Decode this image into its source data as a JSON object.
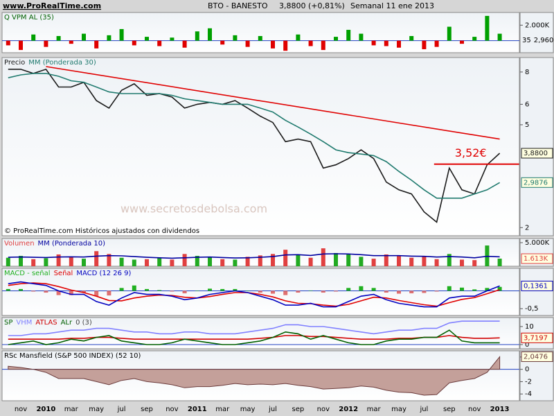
{
  "header": {
    "site": "www.ProRealTime.com",
    "symbol": "BTO - BANESTO",
    "quote": "3,8800 (+0,81%)",
    "period": "Semanal  11 ene 2013"
  },
  "x_axis": {
    "categories": [
      null,
      "nov",
      null,
      "2010",
      null,
      "mar",
      null,
      "may",
      null,
      "jul",
      null,
      "sep",
      null,
      "nov",
      null,
      "2011",
      null,
      "mar",
      null,
      "may",
      null,
      "jul",
      null,
      "sep",
      null,
      "nov",
      null,
      "2012",
      null,
      "mar",
      null,
      "may",
      null,
      "jul",
      null,
      "sep",
      null,
      "nov",
      null,
      "2013"
    ]
  },
  "chart_data": [
    {
      "type": "bar",
      "title": "Q VPM AL (35)",
      "title_color": "#006000",
      "ylim": [
        -1550,
        3640
      ],
      "yticks": [
        {
          "value": 2000,
          "label": "2.000K"
        }
      ],
      "badges": [
        "35",
        "2,960"
      ],
      "series": [
        {
          "type": "bar",
          "up_color": "#00a000",
          "down_color": "#e00000",
          "values": [
            -600,
            -1200,
            800,
            -800,
            600,
            -400,
            900,
            -1000,
            700,
            1500,
            -600,
            500,
            -700,
            400,
            -900,
            1200,
            1600,
            -500,
            700,
            -800,
            600,
            -1000,
            -1300,
            800,
            -700,
            -1200,
            500,
            1400,
            900,
            -600,
            -700,
            -900,
            600,
            -1100,
            -800,
            1800,
            -400,
            500,
            3200,
            900
          ]
        }
      ]
    },
    {
      "type": "line",
      "log_scale": true,
      "ylim": [
        1.86,
        9.1
      ],
      "yticks": [
        2,
        5,
        6,
        8
      ],
      "note": "© ProRealTime.com Históricos ajustados con dividendos",
      "watermark": "www.secretosdebolsa.com",
      "level": {
        "text": "3,52€",
        "value": 3.52,
        "x": [
          "sep",
          "2013"
        ],
        "color": "#e00000"
      },
      "series": [
        {
          "name": "Precio",
          "type": "line",
          "color": "#1a1a1a",
          "values": [
            8.2,
            8.2,
            7.9,
            8.2,
            7.0,
            7.0,
            7.3,
            6.2,
            5.8,
            6.8,
            7.2,
            6.5,
            6.6,
            6.4,
            5.8,
            6.0,
            6.1,
            6.0,
            6.2,
            5.8,
            5.4,
            5.1,
            4.3,
            4.4,
            4.3,
            3.4,
            3.5,
            3.7,
            4.0,
            3.7,
            3.0,
            2.8,
            2.7,
            2.3,
            2.1,
            3.4,
            2.8,
            2.7,
            3.5,
            3.88
          ],
          "value_labels": [
            null,
            null,
            null,
            null,
            null,
            null,
            null,
            null,
            null,
            null,
            null,
            null,
            null,
            null,
            null,
            null,
            null,
            null,
            null,
            null,
            null,
            null,
            null,
            null,
            null,
            null,
            null,
            null,
            null,
            null,
            null,
            null,
            null,
            null,
            null,
            null,
            null,
            null,
            null,
            "3,8800"
          ]
        },
        {
          "name": "MM (Ponderada 30)",
          "type": "line",
          "color": "#1f7a6e",
          "values": [
            7.6,
            7.8,
            7.9,
            7.9,
            7.7,
            7.4,
            7.3,
            7.0,
            6.7,
            6.6,
            6.6,
            6.6,
            6.6,
            6.5,
            6.3,
            6.2,
            6.1,
            6.0,
            6.0,
            6.0,
            5.8,
            5.6,
            5.2,
            4.9,
            4.6,
            4.3,
            4.0,
            3.9,
            3.85,
            3.8,
            3.6,
            3.3,
            3.05,
            2.8,
            2.6,
            2.6,
            2.6,
            2.7,
            2.8,
            2.9876
          ],
          "value_labels": [
            null,
            null,
            null,
            null,
            null,
            null,
            null,
            null,
            null,
            null,
            null,
            null,
            null,
            null,
            null,
            null,
            null,
            null,
            null,
            null,
            null,
            null,
            null,
            null,
            null,
            null,
            null,
            null,
            null,
            null,
            null,
            null,
            null,
            null,
            null,
            null,
            null,
            null,
            null,
            "2,9876"
          ]
        },
        {
          "type": "line",
          "color": "#e00000",
          "x": [
            "2010",
            "2013"
          ],
          "values": [
            8.4,
            4.4
          ]
        }
      ]
    },
    {
      "type": "bar",
      "ylim": [
        0,
        5880
      ],
      "yticks": [
        {
          "value": 5000,
          "label": "5.000K"
        }
      ],
      "series": [
        {
          "name": "Volumen",
          "type": "bar",
          "color": "#e04040",
          "colors": [
            "#22aa22",
            "#22aa22",
            "#e04040",
            "#22aa22",
            "#e04040",
            "#e04040",
            "#22aa22",
            "#e04040",
            "#e04040",
            "#22aa22",
            "#22aa22",
            "#e04040",
            "#22aa22",
            "#e04040",
            "#e04040",
            "#22aa22",
            "#22aa22",
            "#e04040",
            "#22aa22",
            "#e04040",
            "#e04040",
            "#e04040",
            "#e04040",
            "#22aa22",
            "#e04040",
            "#e04040",
            "#22aa22",
            "#22aa22",
            "#22aa22",
            "#e04040",
            "#e04040",
            "#e04040",
            "#e04040",
            "#e04040",
            "#e04040",
            "#22aa22",
            "#e04040",
            "#e04040",
            "#22aa22",
            "#22aa22"
          ],
          "values": [
            1800,
            2200,
            1500,
            1700,
            2500,
            2000,
            1600,
            3200,
            2600,
            1800,
            1400,
            1500,
            1700,
            1400,
            2600,
            2200,
            1900,
            1500,
            1400,
            2000,
            2300,
            2600,
            3500,
            2400,
            1800,
            3800,
            2800,
            2500,
            2000,
            1600,
            2500,
            2300,
            1800,
            2000,
            1500,
            2600,
            1400,
            1300,
            4400,
            1613
          ],
          "value_labels": [
            null,
            null,
            null,
            null,
            null,
            null,
            null,
            null,
            null,
            null,
            null,
            null,
            null,
            null,
            null,
            null,
            null,
            null,
            null,
            null,
            null,
            null,
            null,
            null,
            null,
            null,
            null,
            null,
            null,
            null,
            null,
            null,
            null,
            null,
            null,
            null,
            null,
            null,
            null,
            "1.613K"
          ]
        },
        {
          "name": "MM (Ponderada 10)",
          "type": "line",
          "color": "#0000a0",
          "values": [
            1900,
            1950,
            1900,
            1850,
            1950,
            2000,
            1950,
            2150,
            2250,
            2200,
            2050,
            1900,
            1800,
            1700,
            1800,
            1900,
            1950,
            1850,
            1750,
            1800,
            1900,
            2050,
            2400,
            2450,
            2300,
            2600,
            2650,
            2600,
            2450,
            2250,
            2250,
            2250,
            2150,
            2100,
            1950,
            2050,
            1950,
            1800,
            2100,
            2000
          ]
        }
      ]
    },
    {
      "type": "bar",
      "ylim": [
        -0.69,
        0.63
      ],
      "yticks": [
        {
          "value": -0.5,
          "label": "-0,5"
        }
      ],
      "series": [
        {
          "name": "MACD - señal",
          "type": "bar",
          "up_color": "#20b020",
          "down_color": "#e07070",
          "values": [
            0.05,
            0.05,
            -0.02,
            -0.05,
            -0.12,
            -0.12,
            -0.05,
            -0.15,
            -0.13,
            0.08,
            0.15,
            0.05,
            0.02,
            -0.02,
            -0.07,
            0,
            0.06,
            0.05,
            0.05,
            0,
            -0.05,
            -0.08,
            -0.12,
            -0.05,
            0.01,
            -0.05,
            -0.02,
            0.08,
            0.13,
            0.08,
            -0.05,
            -0.08,
            -0.07,
            -0.06,
            -0.02,
            0.13,
            0.09,
            0.04,
            0.08,
            0.11
          ]
        },
        {
          "name": "Señal",
          "type": "line",
          "color": "#e00000",
          "values": [
            0.15,
            0.2,
            0.22,
            0.2,
            0.12,
            0.02,
            -0.05,
            -0.15,
            -0.27,
            -0.28,
            -0.2,
            -0.15,
            -0.12,
            -0.13,
            -0.18,
            -0.2,
            -0.16,
            -0.1,
            -0.05,
            -0.05,
            -0.1,
            -0.17,
            -0.28,
            -0.35,
            -0.36,
            -0.4,
            -0.43,
            -0.38,
            -0.28,
            -0.18,
            -0.2,
            -0.27,
            -0.33,
            -0.39,
            -0.43,
            -0.33,
            -0.24,
            -0.19,
            -0.08,
            0.03
          ]
        },
        {
          "name": "MACD (12 26 9)",
          "type": "line",
          "color": "#0000c0",
          "values": [
            0.2,
            0.25,
            0.2,
            0.15,
            0,
            -0.1,
            -0.1,
            -0.3,
            -0.4,
            -0.2,
            -0.05,
            -0.1,
            -0.1,
            -0.15,
            -0.25,
            -0.2,
            -0.1,
            -0.05,
            0,
            -0.05,
            -0.15,
            -0.25,
            -0.4,
            -0.4,
            -0.35,
            -0.45,
            -0.45,
            -0.3,
            -0.15,
            -0.1,
            -0.25,
            -0.35,
            -0.4,
            -0.45,
            -0.45,
            -0.2,
            -0.15,
            -0.15,
            0,
            0.1361
          ],
          "value_labels": [
            null,
            null,
            null,
            null,
            null,
            null,
            null,
            null,
            null,
            null,
            null,
            null,
            null,
            null,
            null,
            null,
            null,
            null,
            null,
            null,
            null,
            null,
            null,
            null,
            null,
            null,
            null,
            null,
            null,
            null,
            null,
            null,
            null,
            null,
            null,
            null,
            null,
            null,
            null,
            "0,1361"
          ]
        }
      ]
    },
    {
      "type": "line",
      "title": "SP",
      "title_color": "#006000",
      "params": "0 (3)",
      "ylim": [
        -2.3,
        15
      ],
      "yticks": [
        0,
        10
      ],
      "series": [
        {
          "name": "VHM",
          "type": "line",
          "color": "#8080ff",
          "values": [
            5,
            5,
            6,
            6,
            7,
            8,
            8,
            9,
            9,
            8,
            7,
            7,
            6,
            6,
            7,
            7,
            6,
            6,
            6,
            7,
            8,
            9,
            11,
            11,
            10,
            10,
            9,
            8,
            7,
            6,
            7,
            8,
            8,
            9,
            9,
            12,
            13,
            13,
            13,
            13
          ]
        },
        {
          "name": "ATLAS",
          "type": "line",
          "color": "#d00000",
          "values": [
            3,
            3,
            3,
            3,
            3,
            3.5,
            3.5,
            4,
            4,
            3.5,
            3,
            3,
            3,
            3,
            3,
            3,
            3,
            3,
            3,
            3,
            3.5,
            4,
            5,
            5,
            4.5,
            4.5,
            4,
            3.5,
            3,
            3,
            3,
            3.5,
            3.5,
            4,
            4,
            5,
            4,
            3.5,
            3.5,
            3.7197
          ],
          "value_labels": [
            null,
            null,
            null,
            null,
            null,
            null,
            null,
            null,
            null,
            null,
            null,
            null,
            null,
            null,
            null,
            null,
            null,
            null,
            null,
            null,
            null,
            null,
            null,
            null,
            null,
            null,
            null,
            null,
            null,
            null,
            null,
            null,
            null,
            null,
            null,
            null,
            null,
            null,
            null,
            "3,7197"
          ]
        },
        {
          "name": "ALr",
          "type": "line",
          "color": "#006000",
          "values": [
            0,
            1,
            2,
            0,
            1,
            3,
            2,
            4,
            5,
            2,
            1,
            0,
            0,
            1,
            3,
            2,
            1,
            0,
            0,
            1,
            2,
            4,
            7,
            6,
            3,
            5,
            3,
            1,
            0,
            0,
            2,
            3,
            3,
            4,
            4,
            8,
            2,
            1,
            1,
            1
          ]
        }
      ]
    },
    {
      "type": "area",
      "title": "RSc Mansfield (S&P 500 INDEX) (52 10)",
      "title_color": "#000000",
      "ylim": [
        -5.1,
        3
      ],
      "yticks": [
        2,
        0,
        -2,
        -4
      ],
      "series": [
        {
          "type": "area",
          "color": "#6b3b3b",
          "fill": "#c4a09a",
          "values": [
            0.5,
            0.3,
            0,
            -0.5,
            -1.5,
            -1.5,
            -1.5,
            -2,
            -2.5,
            -1.8,
            -1.5,
            -2,
            -2.2,
            -2.5,
            -3,
            -2.8,
            -2.8,
            -2.6,
            -2.3,
            -2.5,
            -2.4,
            -2.5,
            -2.3,
            -2.6,
            -2.8,
            -3.2,
            -3.1,
            -3.0,
            -2.7,
            -2.9,
            -3.4,
            -3.7,
            -3.8,
            -4.2,
            -4.1,
            -2.2,
            -1.8,
            -1.5,
            -0.5,
            2.0476
          ],
          "value_labels": [
            null,
            null,
            null,
            null,
            null,
            null,
            null,
            null,
            null,
            null,
            null,
            null,
            null,
            null,
            null,
            null,
            null,
            null,
            null,
            null,
            null,
            null,
            null,
            null,
            null,
            null,
            null,
            null,
            null,
            null,
            null,
            null,
            null,
            null,
            null,
            null,
            null,
            null,
            null,
            "2,0476"
          ]
        }
      ]
    }
  ]
}
